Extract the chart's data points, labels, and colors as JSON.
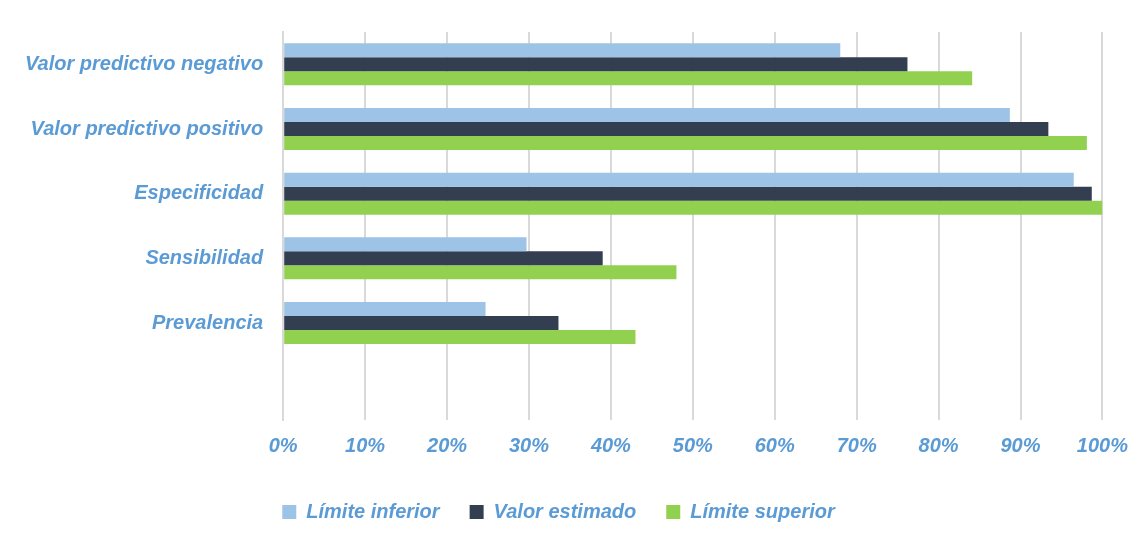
{
  "chart_data": {
    "type": "bar",
    "orientation": "horizontal",
    "categories": [
      "Valor predictivo negativo",
      "Valor predictivo positivo",
      "Especificidad",
      "Sensibilidad",
      "Prevalencia",
      null
    ],
    "series": [
      {
        "name": "Límite inferior",
        "color": "#9dc3e6",
        "values": [
          68,
          88.7,
          96.5,
          29.7,
          24.7,
          null
        ]
      },
      {
        "name": "Valor estimado",
        "color": "#333f50",
        "values": [
          76.2,
          93.4,
          98.7,
          39,
          33.6,
          null
        ]
      },
      {
        "name": "Límite superior",
        "color": "#92d050",
        "values": [
          84.1,
          98.1,
          100,
          48,
          43,
          null
        ]
      }
    ],
    "xlim": [
      0,
      100
    ],
    "xticks": [
      {
        "value": 0,
        "label": "0%"
      },
      {
        "value": 10,
        "label": "10%"
      },
      {
        "value": 20,
        "label": "20%"
      },
      {
        "value": 30,
        "label": "30%"
      },
      {
        "value": 40,
        "label": "40%"
      },
      {
        "value": 50,
        "label": "50%"
      },
      {
        "value": 60,
        "label": "60%"
      },
      {
        "value": 70,
        "label": "70%"
      },
      {
        "value": 80,
        "label": "80%"
      },
      {
        "value": 90,
        "label": "90%"
      },
      {
        "value": 100,
        "label": "100%"
      }
    ],
    "grid": "x",
    "legend": "bottom"
  }
}
